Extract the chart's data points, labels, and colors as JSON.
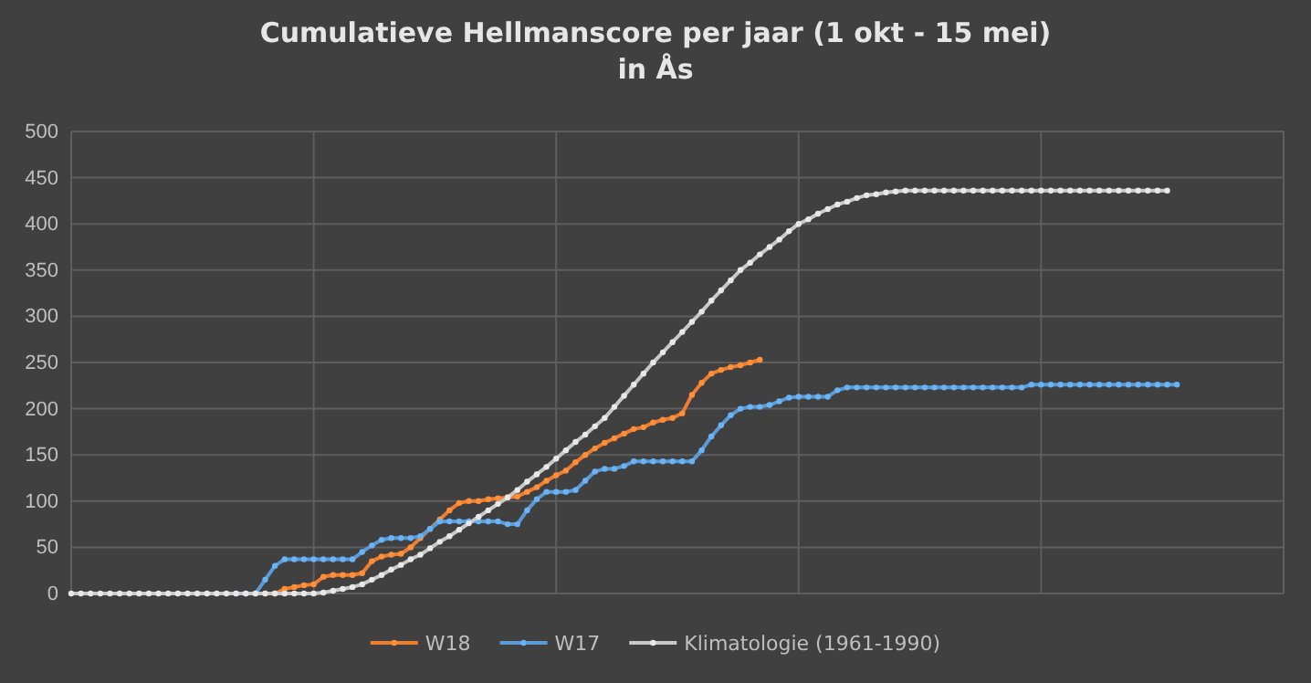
{
  "chart_data": {
    "type": "line",
    "title": "Cumulatieve Hellmanscore per jaar (1 okt - 15 mei)\nin Ås",
    "categories": [
      null,
      null,
      null,
      null,
      null,
      null,
      null,
      null,
      null,
      null,
      null,
      null,
      null,
      null,
      null,
      null,
      null,
      null,
      null,
      null,
      null,
      null,
      null,
      null,
      null,
      null,
      null,
      null,
      null,
      null,
      null,
      null,
      null,
      null,
      null,
      null,
      null,
      null,
      null,
      null,
      null,
      null,
      null,
      null,
      null,
      null,
      null,
      null,
      null,
      null,
      null,
      null,
      null,
      null,
      null,
      null,
      null,
      null,
      null,
      null,
      null,
      null,
      null,
      null,
      null,
      null,
      null,
      null,
      null,
      null,
      null,
      null,
      null,
      null,
      null,
      null,
      null,
      null,
      null,
      null,
      null,
      null,
      null,
      null,
      null,
      null,
      null,
      null,
      null,
      null,
      null,
      null,
      null,
      null,
      null,
      null,
      null,
      null,
      null,
      null,
      null,
      null,
      null,
      null,
      null,
      null,
      null,
      null,
      null,
      null,
      null,
      null,
      null,
      null,
      null,
      null,
      null,
      null,
      null,
      null,
      null,
      null,
      null,
      null,
      null,
      null
    ],
    "series": [
      {
        "name": "W18",
        "color": "#ed7d31",
        "values": [
          null,
          null,
          null,
          null,
          null,
          null,
          null,
          null,
          null,
          null,
          null,
          null,
          null,
          null,
          null,
          null,
          null,
          null,
          null,
          null,
          0,
          0,
          5,
          7,
          9,
          10,
          18,
          20,
          20,
          20,
          22,
          35,
          40,
          42,
          43,
          50,
          60,
          70,
          80,
          90,
          98,
          100,
          100,
          102,
          103,
          104,
          105,
          110,
          115,
          122,
          128,
          133,
          142,
          150,
          157,
          163,
          168,
          173,
          178,
          180,
          185,
          188,
          190,
          195,
          215,
          228,
          238,
          242,
          245,
          247,
          250,
          253,
          null,
          null,
          null,
          null,
          null,
          null,
          null,
          null,
          null,
          null,
          null,
          null,
          null,
          null,
          null,
          null,
          null,
          null,
          null,
          null,
          null,
          null,
          null,
          null,
          null,
          null,
          null,
          null,
          null,
          null,
          null,
          null,
          null,
          null,
          null,
          null,
          null,
          null,
          null,
          null,
          null,
          null,
          null,
          null,
          null,
          null,
          null,
          null,
          null,
          null,
          null,
          null,
          null,
          null
        ]
      },
      {
        "name": "W17",
        "color": "#5b9bd5",
        "values": [
          null,
          null,
          null,
          null,
          null,
          null,
          null,
          null,
          null,
          null,
          null,
          null,
          null,
          null,
          null,
          null,
          null,
          0,
          0,
          0,
          15,
          30,
          37,
          37,
          37,
          37,
          37,
          37,
          37,
          37,
          45,
          52,
          58,
          60,
          60,
          60,
          62,
          70,
          78,
          78,
          78,
          78,
          78,
          78,
          78,
          75,
          75,
          90,
          102,
          110,
          110,
          110,
          112,
          122,
          132,
          135,
          135,
          138,
          143,
          143,
          143,
          143,
          143,
          143,
          143,
          155,
          170,
          182,
          193,
          200,
          202,
          202,
          204,
          208,
          212,
          213,
          213,
          213,
          213,
          220,
          223,
          223,
          223,
          223,
          223,
          223,
          223,
          223,
          223,
          223,
          223,
          223,
          223,
          223,
          223,
          223,
          223,
          223,
          223,
          226,
          226,
          226,
          226,
          226,
          226,
          226,
          226,
          226,
          226,
          226,
          226,
          226,
          226,
          226,
          226,
          null,
          null,
          null,
          null,
          null,
          null,
          null,
          null,
          null,
          null,
          null
        ]
      },
      {
        "name": "Klimatologie (1961-1990)",
        "color": "#c9c9c9",
        "values": [
          0,
          0,
          0,
          0,
          0,
          0,
          0,
          0,
          0,
          0,
          0,
          0,
          0,
          0,
          0,
          0,
          0,
          0,
          0,
          0,
          0,
          0,
          0,
          0,
          0,
          0,
          1,
          3,
          5,
          7,
          10,
          15,
          20,
          26,
          31,
          37,
          42,
          49,
          56,
          62,
          69,
          76,
          83,
          90,
          97,
          104,
          112,
          121,
          129,
          137,
          146,
          155,
          164,
          172,
          181,
          190,
          202,
          214,
          226,
          238,
          250,
          261,
          272,
          283,
          294,
          305,
          317,
          328,
          339,
          350,
          358,
          367,
          375,
          383,
          392,
          400,
          405,
          411,
          416,
          421,
          424,
          428,
          431,
          432,
          434,
          435,
          436,
          436,
          436,
          436,
          436,
          436,
          436,
          436,
          436,
          436,
          436,
          436,
          436,
          436,
          436,
          436,
          436,
          436,
          436,
          436,
          436,
          436,
          436,
          436,
          436,
          436,
          436,
          436,
          null,
          null,
          null,
          null,
          null,
          null,
          null,
          null,
          null,
          null,
          null,
          null
        ]
      }
    ],
    "ylim": [
      0,
      500
    ],
    "yticks": [
      0,
      50,
      100,
      150,
      200,
      250,
      300,
      350,
      400,
      450,
      500
    ],
    "grid": true,
    "legend": "bottom",
    "marker": "circle",
    "line_style": "solid"
  }
}
